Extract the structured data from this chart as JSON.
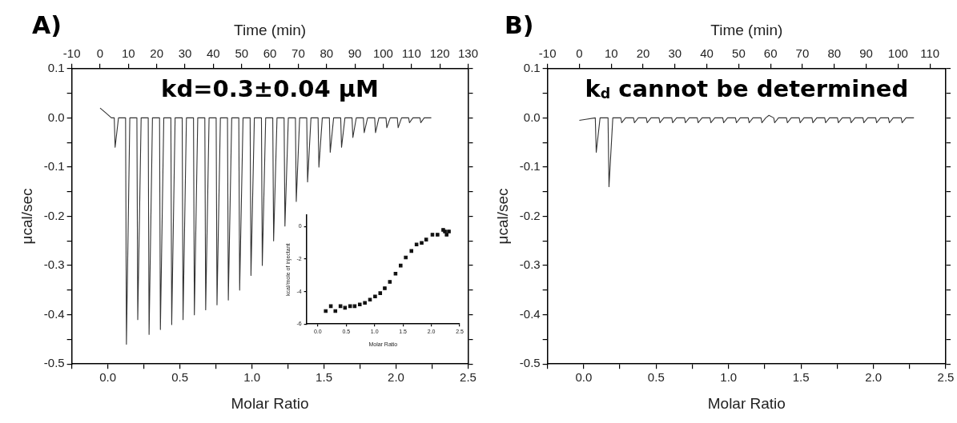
{
  "chart_data": [
    {
      "type": "line",
      "title": "A)",
      "annotations": [
        "kd=0.3±0.04 μM"
      ],
      "xlabel": "Molar Ratio",
      "x2label": "Time (min)",
      "ylabel": "μcal/sec",
      "xlim": [
        -0.25,
        2.5
      ],
      "xticks": [
        {
          "value": -0.25,
          "label": null
        },
        {
          "value": 0,
          "label": "0.0"
        },
        {
          "value": 0.25,
          "label": null
        },
        0.5,
        {
          "value": 0.75,
          "label": null
        },
        {
          "value": 1,
          "label": "1.0"
        },
        {
          "value": 1.25,
          "label": null
        },
        1.5,
        {
          "value": 1.75,
          "label": null
        },
        {
          "value": 2,
          "label": "2.0"
        },
        {
          "value": 2.25,
          "label": null
        },
        2.5
      ],
      "x2lim": [
        -10,
        130
      ],
      "x2ticks": [
        -10,
        0,
        10,
        20,
        30,
        40,
        50,
        60,
        70,
        80,
        90,
        100,
        110,
        120,
        130
      ],
      "ylim": [
        -0.5,
        0.1
      ],
      "yticks": [
        -0.5,
        {
          "value": -0.45,
          "label": null
        },
        -0.4,
        {
          "value": -0.35,
          "label": null
        },
        -0.3,
        {
          "value": -0.25,
          "label": null
        },
        -0.2,
        {
          "value": -0.15,
          "label": null
        },
        -0.1,
        {
          "value": -0.05,
          "label": null
        },
        {
          "value": 0,
          "label": "0.0"
        },
        {
          "value": 0.05,
          "label": null
        },
        0.1
      ],
      "marker": "none",
      "series": [
        {
          "color": "#333333",
          "axis": "x2",
          "x": [
            0,
            2,
            4,
            5,
            5.3,
            6.5,
            9,
            9.3,
            10.5,
            13,
            13.3,
            14.5,
            17,
            17.3,
            18.5,
            21,
            21.3,
            22.5,
            25,
            25.3,
            26.5,
            29,
            29.3,
            30.5,
            33,
            33.3,
            34.5,
            37,
            37.3,
            38.5,
            41,
            41.3,
            42.5,
            45,
            45.3,
            46.5,
            49,
            49.3,
            50.5,
            53,
            53.3,
            54.5,
            57,
            57.3,
            58.5,
            61,
            61.3,
            62.5,
            65,
            65.3,
            66.5,
            69,
            69.3,
            70.5,
            73,
            73.3,
            74.5,
            77,
            77.3,
            78.5,
            81,
            81.3,
            82.5,
            85,
            85.3,
            86.5,
            89,
            89.3,
            90.5,
            93,
            93.3,
            94.5,
            97,
            97.3,
            98.5,
            101,
            101.3,
            102.5,
            105,
            105.3,
            106.5,
            109,
            109.3,
            110.5,
            113,
            113.3,
            114.5,
            117
          ],
          "values": [
            0.02,
            0.01,
            0,
            0,
            -0.06,
            0,
            0,
            -0.46,
            0,
            0,
            -0.41,
            0,
            0,
            -0.44,
            0,
            0,
            -0.43,
            0,
            0,
            -0.42,
            0,
            0,
            -0.41,
            0,
            0,
            -0.4,
            0,
            0,
            -0.39,
            0,
            0,
            -0.38,
            0,
            0,
            -0.37,
            0,
            0,
            -0.35,
            0,
            0,
            -0.32,
            0,
            0,
            -0.3,
            0,
            0,
            -0.25,
            0,
            0,
            -0.22,
            0,
            0,
            -0.17,
            0,
            0,
            -0.13,
            0,
            0,
            -0.1,
            0,
            0,
            -0.07,
            0,
            0,
            -0.06,
            0,
            0,
            -0.04,
            0,
            0,
            -0.03,
            0,
            0,
            -0.03,
            0,
            0,
            -0.02,
            0,
            0,
            -0.02,
            0,
            0,
            -0.01,
            0,
            0,
            -0.01,
            0,
            0
          ]
        }
      ]
    },
    {
      "type": "scatter",
      "xlabel": "Molar Ratio",
      "ylabel": "kcal/mole of injectant",
      "xlim": [
        -0.2,
        2.5
      ],
      "xticks": [
        {
          "value": 0,
          "label": "0.0"
        },
        0.5,
        {
          "value": 1,
          "label": "1.0"
        },
        1.5,
        {
          "value": 2,
          "label": "2.0"
        },
        2.5
      ],
      "ylim": [
        -6,
        0.7
      ],
      "yticks": [
        -6,
        -4,
        -2,
        0
      ],
      "marker": "square",
      "series": [
        {
          "color": "#111111",
          "x": [
            0.14,
            0.23,
            0.31,
            0.4,
            0.48,
            0.57,
            0.65,
            0.74,
            0.83,
            0.92,
            1.01,
            1.1,
            1.18,
            1.27,
            1.37,
            1.46,
            1.55,
            1.65,
            1.74,
            1.83,
            1.91,
            2.02,
            2.11,
            2.21,
            2.24,
            2.27,
            2.31
          ],
          "values": [
            -5.2,
            -4.9,
            -5.2,
            -4.9,
            -5.0,
            -4.9,
            -4.9,
            -4.8,
            -4.7,
            -4.5,
            -4.3,
            -4.1,
            -3.8,
            -3.4,
            -2.9,
            -2.4,
            -1.9,
            -1.5,
            -1.1,
            -1.0,
            -0.8,
            -0.5,
            -0.5,
            -0.2,
            -0.3,
            -0.5,
            -0.3
          ]
        }
      ]
    },
    {
      "type": "line",
      "title": "B)",
      "annotations": [
        "k$_{d}$ cannot be determined"
      ],
      "xlabel": "Molar Ratio",
      "x2label": "Time (min)",
      "ylabel": "μcal/sec",
      "xlim": [
        -0.25,
        2.5
      ],
      "xticks": [
        {
          "value": -0.25,
          "label": null
        },
        {
          "value": 0,
          "label": "0.0"
        },
        {
          "value": 0.25,
          "label": null
        },
        0.5,
        {
          "value": 0.75,
          "label": null
        },
        {
          "value": 1,
          "label": "1.0"
        },
        {
          "value": 1.25,
          "label": null
        },
        1.5,
        {
          "value": 1.75,
          "label": null
        },
        {
          "value": 2,
          "label": "2.0"
        },
        {
          "value": 2.25,
          "label": null
        },
        2.5
      ],
      "x2lim": [
        -10,
        115
      ],
      "x2ticks": [
        -10,
        0,
        10,
        20,
        30,
        40,
        50,
        60,
        70,
        80,
        90,
        100,
        110
      ],
      "ylim": [
        -0.5,
        0.1
      ],
      "yticks": [
        -0.5,
        {
          "value": -0.45,
          "label": null
        },
        -0.4,
        {
          "value": -0.35,
          "label": null
        },
        -0.3,
        {
          "value": -0.25,
          "label": null
        },
        -0.2,
        {
          "value": -0.15,
          "label": null
        },
        -0.1,
        {
          "value": -0.05,
          "label": null
        },
        {
          "value": 0,
          "label": "0.0"
        },
        {
          "value": 0.05,
          "label": null
        },
        0.1
      ],
      "marker": "none",
      "series": [
        {
          "color": "#333333",
          "axis": "x2",
          "x": [
            0,
            2,
            5,
            5.3,
            6.5,
            9,
            9.3,
            10.5,
            13,
            13.3,
            14.5,
            17,
            17.3,
            18.5,
            21,
            21.3,
            22.5,
            25,
            25.3,
            26.5,
            29,
            29.3,
            30.5,
            33,
            33.3,
            34.5,
            37,
            37.3,
            38.5,
            41,
            41.3,
            42.5,
            45,
            45.3,
            46.5,
            49,
            49.3,
            50.5,
            53,
            53.3,
            54.5,
            57,
            57.3,
            58.5,
            59.5,
            61,
            61.3,
            62.5,
            65,
            65.3,
            66.5,
            69,
            69.3,
            70.5,
            73,
            73.3,
            74.5,
            77,
            77.3,
            78.5,
            81,
            81.3,
            82.5,
            85,
            85.3,
            86.5,
            89,
            89.3,
            90.5,
            93,
            93.3,
            94.5,
            97,
            97.3,
            98.5,
            101,
            101.3,
            102.5,
            105
          ],
          "values": [
            -0.005,
            -0.003,
            0,
            -0.07,
            0,
            0,
            -0.14,
            0,
            0,
            -0.01,
            0,
            0,
            -0.01,
            0,
            0,
            -0.01,
            0,
            0,
            -0.01,
            0,
            0,
            -0.01,
            0,
            0,
            -0.01,
            0,
            0,
            -0.01,
            0,
            0,
            -0.01,
            0,
            0,
            -0.01,
            0,
            0,
            -0.01,
            0,
            0,
            -0.01,
            0,
            0,
            -0.01,
            0,
            0.005,
            0,
            -0.01,
            0,
            0,
            -0.01,
            0,
            0,
            -0.01,
            0,
            0,
            -0.01,
            0,
            0,
            -0.01,
            0,
            0,
            -0.01,
            0,
            0,
            -0.01,
            0,
            0,
            -0.01,
            0,
            0,
            -0.01,
            0,
            0,
            -0.01,
            0,
            0,
            -0.01,
            0,
            0
          ]
        }
      ]
    }
  ]
}
